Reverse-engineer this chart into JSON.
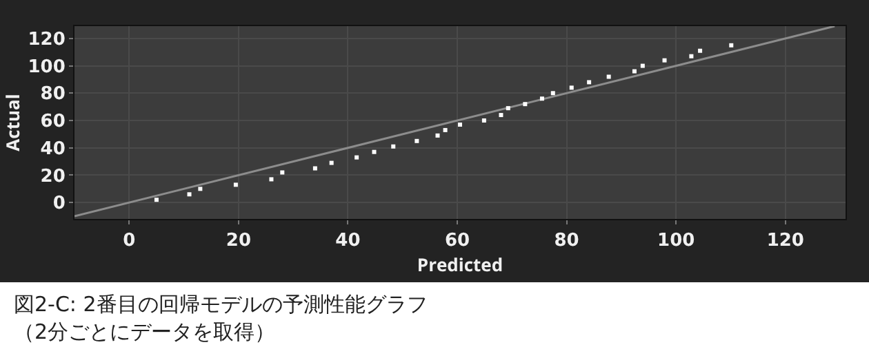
{
  "chart_data": {
    "type": "scatter",
    "xlabel": "Predicted",
    "ylabel": "Actual",
    "xlim": [
      -10,
      131
    ],
    "ylim": [
      -12,
      129
    ],
    "xticks": [
      0,
      20,
      40,
      60,
      80,
      100,
      120
    ],
    "yticks": [
      0,
      20,
      40,
      60,
      80,
      100,
      120
    ],
    "grid": true,
    "marker": "square",
    "series": [
      {
        "color": "#ffffff",
        "x": [
          5,
          11,
          13,
          19.5,
          26,
          28,
          34,
          37,
          41.6,
          44.8,
          48.3,
          52.6,
          56.4,
          57.8,
          60.5,
          64.9,
          68,
          69.3,
          72.4,
          75.5,
          77.5,
          80.9,
          84.1,
          87.7,
          92.4,
          93.9,
          97.9,
          102.8,
          104.4,
          110.1
        ],
        "values": [
          2,
          6,
          10,
          13,
          17,
          22,
          25,
          29,
          33,
          37,
          41,
          45,
          49,
          53,
          57,
          60,
          64,
          69,
          72,
          76,
          80,
          84,
          88,
          92,
          96,
          100,
          104,
          107,
          111,
          115
        ]
      },
      {
        "type": "line",
        "marker": "none",
        "color": "#8c8c8c",
        "x": [
          -10,
          129
        ],
        "values": [
          -10,
          129
        ]
      }
    ],
    "annotations": [
      "図2-C: 2番目の回帰モデルの予測性能グラフ",
      "（2分ごとにデータを取得）"
    ]
  }
}
